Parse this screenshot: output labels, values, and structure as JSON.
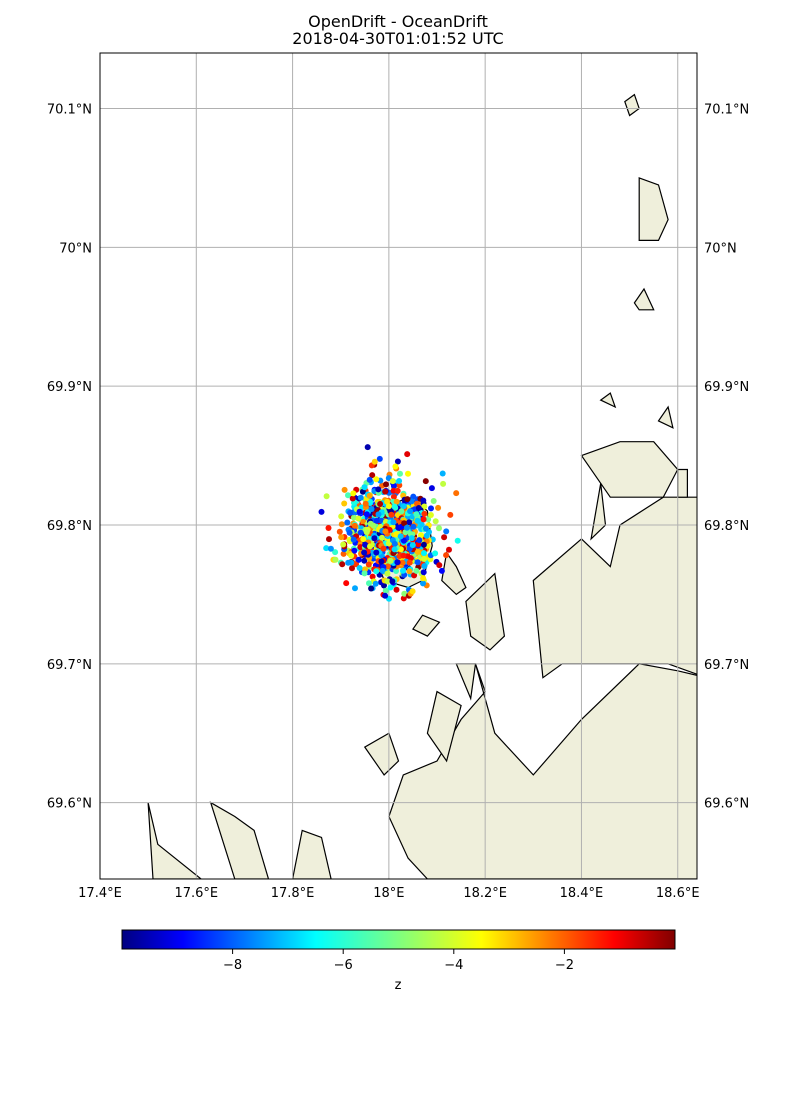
{
  "title": {
    "line1": "OpenDrift - OceanDrift",
    "line2": "2018-04-30T01:01:52 UTC"
  },
  "chart_data": {
    "type": "scatter",
    "projection": "geographic",
    "xlim": [
      17.4,
      18.64
    ],
    "ylim": [
      69.545,
      70.14
    ],
    "grid": true,
    "land_color": "#efefdb",
    "lon_ticks": [
      {
        "value": 17.4,
        "label": "17.4°E"
      },
      {
        "value": 17.6,
        "label": "17.6°E"
      },
      {
        "value": 17.8,
        "label": "17.8°E"
      },
      {
        "value": 18.0,
        "label": "18°E"
      },
      {
        "value": 18.2,
        "label": "18.2°E"
      },
      {
        "value": 18.4,
        "label": "18.4°E"
      },
      {
        "value": 18.6,
        "label": "18.6°E"
      }
    ],
    "lat_ticks": [
      {
        "value": 70.1,
        "label": "70.1°N"
      },
      {
        "value": 70.0,
        "label": "70°N"
      },
      {
        "value": 69.9,
        "label": "69.9°N"
      },
      {
        "value": 69.8,
        "label": "69.8°N"
      },
      {
        "value": 69.7,
        "label": "69.7°N"
      },
      {
        "value": 69.6,
        "label": "69.6°N"
      }
    ],
    "particles": {
      "center_lon": 18.0,
      "center_lat": 69.795,
      "spread_lon": 0.09,
      "spread_lat": 0.035,
      "count": 1000
    },
    "colorbar": {
      "label": "z",
      "colormap": "jet",
      "range": [
        -10,
        0
      ],
      "ticks": [
        {
          "value": -8,
          "label": "−8"
        },
        {
          "value": -6,
          "label": "−6"
        },
        {
          "value": -4,
          "label": "−4"
        },
        {
          "value": -2,
          "label": "−2"
        }
      ]
    },
    "land": [
      [
        [
          17.96,
          69.79
        ],
        [
          17.99,
          69.76
        ],
        [
          18.04,
          69.755
        ],
        [
          18.07,
          69.76
        ],
        [
          18.09,
          69.785
        ],
        [
          18.08,
          69.81
        ],
        [
          18.05,
          69.82
        ],
        [
          18.0,
          69.815
        ]
      ],
      [
        [
          18.11,
          69.76
        ],
        [
          18.12,
          69.78
        ],
        [
          18.14,
          69.77
        ],
        [
          18.16,
          69.755
        ],
        [
          18.14,
          69.75
        ]
      ],
      [
        [
          18.05,
          69.725
        ],
        [
          18.08,
          69.72
        ],
        [
          18.105,
          69.73
        ],
        [
          18.07,
          69.735
        ]
      ],
      [
        [
          18.16,
          69.745
        ],
        [
          18.22,
          69.765
        ],
        [
          18.24,
          69.72
        ],
        [
          18.21,
          69.71
        ],
        [
          18.17,
          69.72
        ]
      ],
      [
        [
          18.3,
          69.76
        ],
        [
          18.4,
          69.79
        ],
        [
          18.46,
          69.77
        ],
        [
          18.48,
          69.8
        ],
        [
          18.57,
          69.82
        ],
        [
          18.66,
          69.82
        ],
        [
          18.66,
          69.69
        ],
        [
          18.58,
          69.7
        ],
        [
          18.48,
          69.7
        ],
        [
          18.36,
          69.7
        ],
        [
          18.32,
          69.69
        ]
      ],
      [
        [
          18.18,
          69.7
        ],
        [
          18.22,
          69.65
        ],
        [
          18.3,
          69.62
        ],
        [
          18.4,
          69.66
        ],
        [
          18.52,
          69.7
        ],
        [
          18.6,
          69.695
        ],
        [
          18.66,
          69.69
        ],
        [
          18.66,
          69.545
        ],
        [
          18.08,
          69.545
        ],
        [
          18.04,
          69.56
        ],
        [
          18.0,
          69.59
        ],
        [
          18.03,
          69.62
        ],
        [
          18.1,
          69.63
        ],
        [
          18.15,
          69.66
        ],
        [
          18.2,
          69.68
        ]
      ],
      [
        [
          17.51,
          69.545
        ],
        [
          17.5,
          69.6
        ],
        [
          17.52,
          69.57
        ],
        [
          17.61,
          69.545
        ]
      ],
      [
        [
          17.63,
          69.6
        ],
        [
          17.68,
          69.545
        ],
        [
          17.75,
          69.545
        ],
        [
          17.72,
          69.58
        ],
        [
          17.68,
          69.59
        ]
      ],
      [
        [
          17.8,
          69.545
        ],
        [
          17.82,
          69.58
        ],
        [
          17.86,
          69.575
        ],
        [
          17.88,
          69.545
        ]
      ],
      [
        [
          17.95,
          69.64
        ],
        [
          17.99,
          69.62
        ],
        [
          18.02,
          69.63
        ],
        [
          18.0,
          69.65
        ]
      ],
      [
        [
          18.08,
          69.65
        ],
        [
          18.1,
          69.68
        ],
        [
          18.15,
          69.67
        ],
        [
          18.12,
          69.63
        ]
      ],
      [
        [
          18.14,
          69.7
        ],
        [
          18.18,
          69.7
        ],
        [
          18.17,
          69.675
        ]
      ],
      [
        [
          18.4,
          69.85
        ],
        [
          18.48,
          69.86
        ],
        [
          18.55,
          69.86
        ],
        [
          18.6,
          69.84
        ],
        [
          18.57,
          69.82
        ],
        [
          18.46,
          69.82
        ]
      ],
      [
        [
          18.42,
          69.79
        ],
        [
          18.44,
          69.83
        ],
        [
          18.45,
          69.8
        ]
      ],
      [
        [
          18.52,
          70.05
        ],
        [
          18.56,
          70.045
        ],
        [
          18.58,
          70.02
        ],
        [
          18.56,
          70.005
        ],
        [
          18.52,
          70.005
        ]
      ],
      [
        [
          18.49,
          70.105
        ],
        [
          18.51,
          70.11
        ],
        [
          18.52,
          70.1
        ],
        [
          18.5,
          70.095
        ]
      ],
      [
        [
          18.44,
          69.89
        ],
        [
          18.46,
          69.895
        ],
        [
          18.47,
          69.885
        ]
      ],
      [
        [
          18.56,
          69.875
        ],
        [
          18.59,
          69.87
        ],
        [
          18.58,
          69.885
        ]
      ],
      [
        [
          18.6,
          69.82
        ],
        [
          18.62,
          69.82
        ],
        [
          18.62,
          69.84
        ],
        [
          18.6,
          69.84
        ]
      ],
      [
        [
          18.51,
          69.96
        ],
        [
          18.53,
          69.97
        ],
        [
          18.55,
          69.955
        ],
        [
          18.52,
          69.955
        ]
      ]
    ]
  }
}
